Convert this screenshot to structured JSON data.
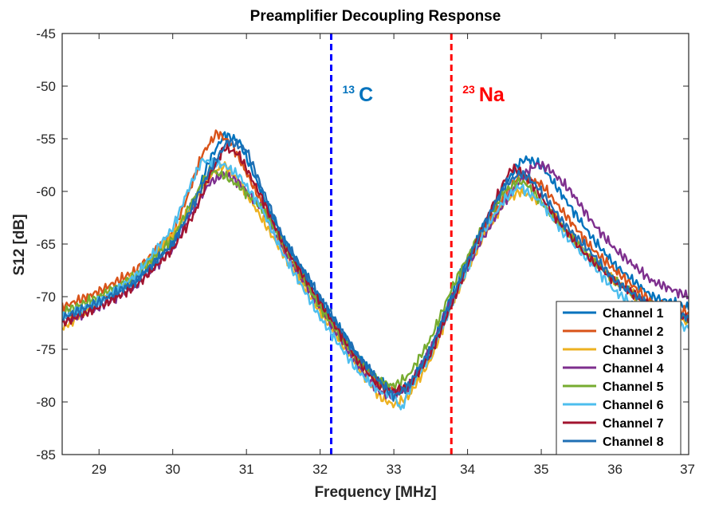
{
  "chart_data": {
    "type": "line",
    "title": "Preamplifier Decoupling Response",
    "xlabel": "Frequency [MHz]",
    "ylabel": "S12 [dB]",
    "xlim": [
      28.5,
      37
    ],
    "ylim": [
      -85,
      -45
    ],
    "xticks": [
      29,
      30,
      31,
      32,
      33,
      34,
      35,
      36,
      37
    ],
    "yticks": [
      -85,
      -80,
      -75,
      -70,
      -65,
      -60,
      -55,
      -50,
      -45
    ],
    "xtick_labels": [
      "29",
      "30",
      "31",
      "32",
      "33",
      "34",
      "35",
      "36",
      "37"
    ],
    "ytick_labels": [
      "-85",
      "-80",
      "-75",
      "-70",
      "-65",
      "-60",
      "-55",
      "-50",
      "-45"
    ],
    "grid": false,
    "legend_position": "bottom-right",
    "annotations": [
      {
        "name": "carbon-13-marker",
        "x": 32.15,
        "superscript": "13",
        "label": "C",
        "color": "#0000ff",
        "text_color": "#0072bd"
      },
      {
        "name": "sodium-23-marker",
        "x": 33.78,
        "superscript": "23",
        "label": "Na",
        "color": "#ff0000",
        "text_color": "#ff0000"
      }
    ],
    "series": [
      {
        "name": "Channel 1",
        "color": "#0072bd",
        "x": [
          28.5,
          29.0,
          29.5,
          30.0,
          30.3,
          30.5,
          30.7,
          30.9,
          31.2,
          31.5,
          32.0,
          32.5,
          32.8,
          33.0,
          33.2,
          33.5,
          33.8,
          34.2,
          34.5,
          34.7,
          34.8,
          35.0,
          35.3,
          35.7,
          36.0,
          36.5,
          37.0
        ],
        "y": [
          -72.0,
          -70.5,
          -68.5,
          -65.0,
          -60.8,
          -57.0,
          -54.6,
          -55.2,
          -60.0,
          -64.5,
          -70.2,
          -75.5,
          -78.0,
          -79.0,
          -78.5,
          -75.0,
          -69.5,
          -63.5,
          -59.5,
          -57.3,
          -56.9,
          -57.5,
          -60.5,
          -64.5,
          -67.0,
          -70.0,
          -71.0
        ]
      },
      {
        "name": "Channel 2",
        "color": "#d95319",
        "x": [
          28.5,
          29.0,
          29.5,
          30.0,
          30.2,
          30.4,
          30.6,
          30.8,
          31.2,
          31.5,
          32.0,
          32.5,
          32.8,
          33.0,
          33.2,
          33.5,
          33.8,
          34.2,
          34.5,
          34.7,
          35.0,
          35.3,
          35.7,
          36.0,
          36.5,
          37.0
        ],
        "y": [
          -71.0,
          -69.5,
          -67.5,
          -64.0,
          -60.5,
          -56.5,
          -54.4,
          -55.5,
          -61.0,
          -65.5,
          -71.0,
          -76.0,
          -78.5,
          -79.2,
          -78.8,
          -75.5,
          -70.0,
          -64.0,
          -60.5,
          -58.5,
          -59.3,
          -62.0,
          -65.5,
          -67.5,
          -70.5,
          -71.5
        ]
      },
      {
        "name": "Channel 3",
        "color": "#edb120",
        "x": [
          28.5,
          29.0,
          29.5,
          30.0,
          30.3,
          30.5,
          30.7,
          30.9,
          31.2,
          31.5,
          32.0,
          32.5,
          32.8,
          33.0,
          33.2,
          33.5,
          33.8,
          34.2,
          34.5,
          34.7,
          34.8,
          35.0,
          35.3,
          35.7,
          36.0,
          36.5,
          37.0
        ],
        "y": [
          -73.0,
          -70.5,
          -68.0,
          -64.0,
          -61.0,
          -58.5,
          -57.5,
          -59.0,
          -62.5,
          -66.0,
          -71.5,
          -76.5,
          -79.5,
          -80.3,
          -79.5,
          -76.0,
          -70.5,
          -64.5,
          -61.0,
          -60.0,
          -60.3,
          -61.0,
          -63.5,
          -66.5,
          -68.5,
          -71.0,
          -72.5
        ]
      },
      {
        "name": "Channel 4",
        "color": "#7e2f8e",
        "x": [
          28.5,
          29.0,
          29.5,
          30.0,
          30.3,
          30.5,
          30.7,
          30.9,
          31.2,
          31.5,
          32.0,
          32.5,
          32.8,
          33.0,
          33.2,
          33.5,
          33.8,
          34.2,
          34.5,
          34.8,
          34.95,
          35.1,
          35.4,
          35.7,
          36.0,
          36.5,
          37.0
        ],
        "y": [
          -72.5,
          -71.0,
          -69.0,
          -65.5,
          -61.5,
          -59.2,
          -58.3,
          -59.2,
          -61.5,
          -65.5,
          -71.0,
          -76.5,
          -79.0,
          -79.5,
          -78.5,
          -75.0,
          -70.0,
          -64.5,
          -61.0,
          -58.2,
          -57.4,
          -57.8,
          -60.0,
          -63.0,
          -65.5,
          -68.5,
          -70.0
        ]
      },
      {
        "name": "Channel 5",
        "color": "#77ac30",
        "x": [
          28.5,
          29.0,
          29.5,
          30.0,
          30.3,
          30.5,
          30.7,
          30.9,
          31.2,
          31.5,
          32.0,
          32.5,
          32.8,
          33.0,
          33.2,
          33.5,
          33.8,
          34.2,
          34.5,
          34.7,
          34.8,
          35.0,
          35.3,
          35.7,
          36.0,
          36.5,
          37.0
        ],
        "y": [
          -71.5,
          -70.0,
          -68.0,
          -64.5,
          -60.5,
          -58.0,
          -58.5,
          -59.5,
          -61.5,
          -65.0,
          -71.0,
          -76.0,
          -78.0,
          -78.5,
          -77.5,
          -74.0,
          -69.0,
          -63.5,
          -60.0,
          -59.0,
          -59.3,
          -61.0,
          -63.5,
          -66.5,
          -68.5,
          -71.0,
          -72.0
        ]
      },
      {
        "name": "Channel 6",
        "color": "#4dbeee",
        "x": [
          28.5,
          29.0,
          29.5,
          30.0,
          30.2,
          30.4,
          30.5,
          30.7,
          30.9,
          31.2,
          31.5,
          32.0,
          32.5,
          32.8,
          33.0,
          33.1,
          33.2,
          33.5,
          33.8,
          34.2,
          34.5,
          34.7,
          35.0,
          35.3,
          35.7,
          36.0,
          36.5,
          37.0
        ],
        "y": [
          -72.0,
          -70.5,
          -68.0,
          -63.5,
          -60.0,
          -57.0,
          -57.2,
          -57.5,
          -58.5,
          -61.5,
          -66.0,
          -72.0,
          -77.0,
          -79.0,
          -79.3,
          -80.8,
          -79.0,
          -75.5,
          -70.5,
          -64.0,
          -60.8,
          -59.5,
          -61.0,
          -64.0,
          -67.0,
          -69.5,
          -72.0,
          -73.0
        ]
      },
      {
        "name": "Channel 7",
        "color": "#a2142f",
        "x": [
          28.5,
          29.0,
          29.5,
          30.0,
          30.3,
          30.5,
          30.7,
          30.9,
          31.2,
          31.5,
          32.0,
          32.5,
          32.8,
          33.0,
          33.2,
          33.5,
          33.8,
          34.2,
          34.5,
          34.6,
          34.7,
          34.9,
          35.2,
          35.6,
          36.0,
          36.5,
          37.0
        ],
        "y": [
          -72.5,
          -71.0,
          -69.0,
          -65.5,
          -62.0,
          -58.5,
          -55.8,
          -56.5,
          -60.5,
          -65.0,
          -70.5,
          -76.0,
          -78.5,
          -79.0,
          -78.5,
          -75.5,
          -70.5,
          -63.5,
          -59.0,
          -57.8,
          -58.0,
          -59.5,
          -62.5,
          -66.0,
          -68.5,
          -71.0,
          -72.0
        ]
      },
      {
        "name": "Channel 8",
        "color": "#1f6fb4",
        "x": [
          28.5,
          29.0,
          29.5,
          30.0,
          30.3,
          30.5,
          30.75,
          31.0,
          31.2,
          31.5,
          32.0,
          32.5,
          32.8,
          33.0,
          33.2,
          33.5,
          33.8,
          34.2,
          34.5,
          34.7,
          34.8,
          35.0,
          35.3,
          35.7,
          36.0,
          36.5,
          37.0
        ],
        "y": [
          -72.0,
          -70.5,
          -68.5,
          -65.0,
          -61.0,
          -58.0,
          -55.2,
          -56.0,
          -59.5,
          -64.5,
          -70.0,
          -75.5,
          -78.0,
          -79.5,
          -78.5,
          -75.0,
          -70.0,
          -63.5,
          -59.5,
          -58.3,
          -58.5,
          -60.0,
          -63.0,
          -66.0,
          -68.5,
          -71.0,
          -72.0
        ]
      }
    ]
  }
}
